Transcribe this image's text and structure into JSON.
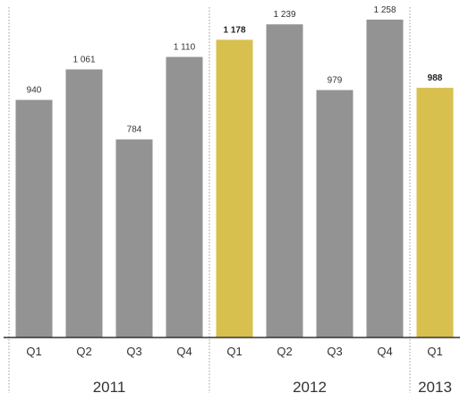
{
  "chart_data": {
    "type": "bar",
    "title": "",
    "xlabel": "",
    "ylabel": "",
    "ylim": [
      0,
      1300
    ],
    "grid": false,
    "legend": "none",
    "categories": [
      "Q1",
      "Q2",
      "Q3",
      "Q4",
      "Q1",
      "Q2",
      "Q3",
      "Q4",
      "Q1"
    ],
    "values": [
      940,
      1061,
      784,
      1110,
      1178,
      1239,
      979,
      1258,
      988
    ],
    "value_labels": [
      "940",
      "1 061",
      "784",
      "1 110",
      "1 178",
      "1 239",
      "979",
      "1 258",
      "988"
    ],
    "highlighted": [
      false,
      false,
      false,
      false,
      true,
      false,
      false,
      false,
      true
    ],
    "groups": [
      {
        "label": "2011",
        "count": 4
      },
      {
        "label": "2012",
        "count": 4
      },
      {
        "label": "2013",
        "count": 1
      }
    ],
    "colors": {
      "bar": "#939393",
      "highlight": "#d8c04f",
      "axis": "#333333",
      "separator": "#9a9a9a"
    }
  }
}
